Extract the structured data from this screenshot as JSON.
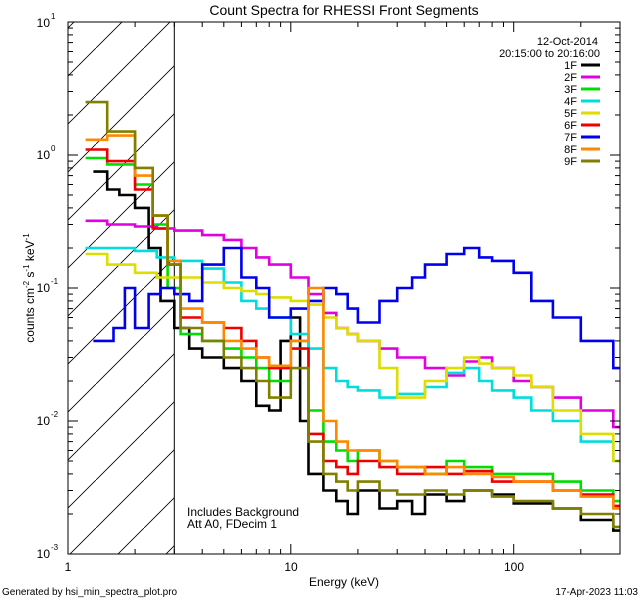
{
  "chart_data": {
    "type": "line",
    "title": "Count Spectra for RHESSI Front Segments",
    "xlabel": "Energy (keV)",
    "ylabel": "counts cm",
    "ylabel_sup1": "-2",
    "ylabel_mid": " s",
    "ylabel_sup2": "-1",
    "ylabel_end": " keV",
    "ylabel_sup3": "-1",
    "xscale": "log",
    "yscale": "log",
    "xlim": [
      1,
      300
    ],
    "ylim": [
      0.001,
      10
    ],
    "x_tick_labels": [
      "1",
      "10",
      "100"
    ],
    "y_tick_labels": [
      {
        "base": "10",
        "exp": "-3"
      },
      {
        "base": "10",
        "exp": "-2"
      },
      {
        "base": "10",
        "exp": "-1"
      },
      {
        "base": "10",
        "exp": "0"
      },
      {
        "base": "10",
        "exp": "1"
      }
    ],
    "date": "12-Oct-2014",
    "time_range": "20:15:00 to 20:16:00",
    "attenuator_cutoff_kev": 3,
    "annotation_line1": "Includes Background",
    "annotation_line2": "Att A0, FDecim 1",
    "footer_left": "Generated by hsi_min_spectra_plot.pro",
    "footer_right": "17-Apr-2023 11:03",
    "legend_position": "top-right",
    "series": [
      {
        "name": "1F",
        "color": "#000000",
        "points": [
          [
            1.3,
            0.75
          ],
          [
            1.5,
            0.55
          ],
          [
            1.7,
            0.5
          ],
          [
            2.0,
            0.4
          ],
          [
            2.3,
            0.2
          ],
          [
            2.6,
            0.08
          ],
          [
            3.0,
            0.05
          ],
          [
            3.5,
            0.035
          ],
          [
            4,
            0.03
          ],
          [
            5,
            0.025
          ],
          [
            6,
            0.02
          ],
          [
            7,
            0.013
          ],
          [
            8,
            0.012
          ],
          [
            9,
            0.04
          ],
          [
            10,
            0.06
          ],
          [
            11,
            0.01
          ],
          [
            12,
            0.004
          ],
          [
            14,
            0.003
          ],
          [
            16,
            0.0025
          ],
          [
            18,
            0.002
          ],
          [
            20,
            0.003
          ],
          [
            25,
            0.0022
          ],
          [
            30,
            0.0025
          ],
          [
            35,
            0.002
          ],
          [
            40,
            0.0028
          ],
          [
            50,
            0.0025
          ],
          [
            60,
            0.003
          ],
          [
            80,
            0.0028
          ],
          [
            100,
            0.0024
          ],
          [
            150,
            0.0022
          ],
          [
            200,
            0.0018
          ],
          [
            280,
            0.0015
          ]
        ]
      },
      {
        "name": "2F",
        "color": "#e000e0",
        "points": [
          [
            1.2,
            0.32
          ],
          [
            1.5,
            0.3
          ],
          [
            2.0,
            0.29
          ],
          [
            2.5,
            0.28
          ],
          [
            3.0,
            0.27
          ],
          [
            4,
            0.25
          ],
          [
            5,
            0.23
          ],
          [
            6,
            0.2
          ],
          [
            7,
            0.17
          ],
          [
            8,
            0.15
          ],
          [
            10,
            0.12
          ],
          [
            12,
            0.09
          ],
          [
            14,
            0.065
          ],
          [
            16,
            0.05
          ],
          [
            18,
            0.045
          ],
          [
            20,
            0.04
          ],
          [
            25,
            0.035
          ],
          [
            30,
            0.03
          ],
          [
            40,
            0.025
          ],
          [
            50,
            0.022
          ],
          [
            60,
            0.028
          ],
          [
            70,
            0.03
          ],
          [
            80,
            0.025
          ],
          [
            100,
            0.02
          ],
          [
            120,
            0.018
          ],
          [
            150,
            0.015
          ],
          [
            200,
            0.012
          ],
          [
            280,
            0.009
          ]
        ]
      },
      {
        "name": "3F",
        "color": "#00dd00",
        "points": [
          [
            1.2,
            0.95
          ],
          [
            1.5,
            0.85
          ],
          [
            2.0,
            0.6
          ],
          [
            2.4,
            0.3
          ],
          [
            2.8,
            0.1
          ],
          [
            3.2,
            0.045
          ],
          [
            4,
            0.04
          ],
          [
            5,
            0.035
          ],
          [
            6,
            0.03
          ],
          [
            7,
            0.025
          ],
          [
            8,
            0.02
          ],
          [
            10,
            0.04
          ],
          [
            12,
            0.012
          ],
          [
            14,
            0.007
          ],
          [
            16,
            0.006
          ],
          [
            18,
            0.005
          ],
          [
            20,
            0.006
          ],
          [
            25,
            0.005
          ],
          [
            30,
            0.0045
          ],
          [
            40,
            0.004
          ],
          [
            50,
            0.005
          ],
          [
            60,
            0.0045
          ],
          [
            80,
            0.004
          ],
          [
            100,
            0.004
          ],
          [
            150,
            0.0035
          ],
          [
            200,
            0.003
          ],
          [
            280,
            0.0025
          ]
        ]
      },
      {
        "name": "4F",
        "color": "#00dddd",
        "points": [
          [
            1.2,
            0.2
          ],
          [
            1.5,
            0.2
          ],
          [
            2.0,
            0.19
          ],
          [
            2.5,
            0.17
          ],
          [
            3.0,
            0.16
          ],
          [
            4,
            0.14
          ],
          [
            5,
            0.11
          ],
          [
            6,
            0.08
          ],
          [
            7,
            0.07
          ],
          [
            8,
            0.06
          ],
          [
            10,
            0.045
          ],
          [
            12,
            0.035
          ],
          [
            14,
            0.025
          ],
          [
            16,
            0.02
          ],
          [
            18,
            0.018
          ],
          [
            20,
            0.017
          ],
          [
            25,
            0.015
          ],
          [
            30,
            0.016
          ],
          [
            40,
            0.018
          ],
          [
            50,
            0.023
          ],
          [
            60,
            0.025
          ],
          [
            70,
            0.02
          ],
          [
            80,
            0.017
          ],
          [
            100,
            0.015
          ],
          [
            120,
            0.012
          ],
          [
            150,
            0.01
          ],
          [
            200,
            0.007
          ],
          [
            280,
            0.005
          ]
        ]
      },
      {
        "name": "5F",
        "color": "#dddd00",
        "points": [
          [
            1.2,
            0.18
          ],
          [
            1.5,
            0.15
          ],
          [
            2.0,
            0.13
          ],
          [
            2.5,
            0.12
          ],
          [
            3.0,
            0.12
          ],
          [
            4,
            0.11
          ],
          [
            5,
            0.1
          ],
          [
            6,
            0.095
          ],
          [
            7,
            0.09
          ],
          [
            8,
            0.085
          ],
          [
            10,
            0.08
          ],
          [
            12,
            0.075
          ],
          [
            14,
            0.06
          ],
          [
            16,
            0.05
          ],
          [
            18,
            0.045
          ],
          [
            20,
            0.04
          ],
          [
            25,
            0.025
          ],
          [
            30,
            0.015
          ],
          [
            40,
            0.02
          ],
          [
            50,
            0.025
          ],
          [
            60,
            0.03
          ],
          [
            70,
            0.027
          ],
          [
            80,
            0.025
          ],
          [
            100,
            0.022
          ],
          [
            120,
            0.018
          ],
          [
            150,
            0.012
          ],
          [
            200,
            0.008
          ],
          [
            280,
            0.005
          ]
        ]
      },
      {
        "name": "6F",
        "color": "#ee0000",
        "points": [
          [
            1.2,
            1.1
          ],
          [
            1.5,
            0.9
          ],
          [
            2.0,
            0.55
          ],
          [
            2.4,
            0.28
          ],
          [
            2.8,
            0.15
          ],
          [
            3.2,
            0.06
          ],
          [
            4,
            0.055
          ],
          [
            5,
            0.05
          ],
          [
            6,
            0.04
          ],
          [
            7,
            0.03
          ],
          [
            8,
            0.025
          ],
          [
            10,
            0.035
          ],
          [
            12,
            0.008
          ],
          [
            14,
            0.005
          ],
          [
            16,
            0.0045
          ],
          [
            18,
            0.004
          ],
          [
            20,
            0.005
          ],
          [
            25,
            0.0045
          ],
          [
            30,
            0.004
          ],
          [
            40,
            0.0045
          ],
          [
            50,
            0.004
          ],
          [
            60,
            0.0042
          ],
          [
            80,
            0.0035
          ],
          [
            100,
            0.0035
          ],
          [
            150,
            0.003
          ],
          [
            200,
            0.0028
          ],
          [
            280,
            0.0023
          ]
        ]
      },
      {
        "name": "7F",
        "color": "#0000ee",
        "points": [
          [
            1.3,
            0.04
          ],
          [
            1.6,
            0.05
          ],
          [
            1.8,
            0.1
          ],
          [
            2.0,
            0.05
          ],
          [
            2.3,
            0.09
          ],
          [
            2.6,
            0.1
          ],
          [
            3.0,
            0.09
          ],
          [
            3.5,
            0.08
          ],
          [
            4,
            0.15
          ],
          [
            5,
            0.2
          ],
          [
            6,
            0.12
          ],
          [
            7,
            0.1
          ],
          [
            8,
            0.06
          ],
          [
            9,
            0.06
          ],
          [
            10,
            0.07
          ],
          [
            12,
            0.08
          ],
          [
            14,
            0.1
          ],
          [
            16,
            0.09
          ],
          [
            18,
            0.07
          ],
          [
            20,
            0.055
          ],
          [
            25,
            0.08
          ],
          [
            30,
            0.1
          ],
          [
            35,
            0.12
          ],
          [
            40,
            0.15
          ],
          [
            50,
            0.18
          ],
          [
            60,
            0.2
          ],
          [
            70,
            0.17
          ],
          [
            80,
            0.16
          ],
          [
            100,
            0.13
          ],
          [
            120,
            0.08
          ],
          [
            150,
            0.06
          ],
          [
            200,
            0.04
          ],
          [
            280,
            0.025
          ]
        ]
      },
      {
        "name": "8F",
        "color": "#ff8800",
        "points": [
          [
            1.2,
            1.3
          ],
          [
            1.5,
            1.4
          ],
          [
            2.0,
            0.7
          ],
          [
            2.4,
            0.35
          ],
          [
            2.8,
            0.16
          ],
          [
            3.2,
            0.07
          ],
          [
            4,
            0.055
          ],
          [
            5,
            0.04
          ],
          [
            6,
            0.035
          ],
          [
            7,
            0.03
          ],
          [
            8,
            0.026
          ],
          [
            10,
            0.04
          ],
          [
            12,
            0.1
          ],
          [
            14,
            0.01
          ],
          [
            16,
            0.007
          ],
          [
            18,
            0.006
          ],
          [
            20,
            0.006
          ],
          [
            25,
            0.005
          ],
          [
            30,
            0.0045
          ],
          [
            40,
            0.004
          ],
          [
            50,
            0.0045
          ],
          [
            60,
            0.004
          ],
          [
            80,
            0.0038
          ],
          [
            100,
            0.0035
          ],
          [
            150,
            0.003
          ],
          [
            200,
            0.0027
          ],
          [
            280,
            0.0022
          ]
        ]
      },
      {
        "name": "9F",
        "color": "#808000",
        "points": [
          [
            1.2,
            2.5
          ],
          [
            1.5,
            1.5
          ],
          [
            2.0,
            0.8
          ],
          [
            2.4,
            0.35
          ],
          [
            2.8,
            0.15
          ],
          [
            3.2,
            0.05
          ],
          [
            4,
            0.04
          ],
          [
            5,
            0.03
          ],
          [
            6,
            0.025
          ],
          [
            7,
            0.02
          ],
          [
            8,
            0.015
          ],
          [
            10,
            0.025
          ],
          [
            12,
            0.007
          ],
          [
            14,
            0.004
          ],
          [
            16,
            0.0035
          ],
          [
            18,
            0.003
          ],
          [
            20,
            0.0035
          ],
          [
            25,
            0.003
          ],
          [
            30,
            0.0028
          ],
          [
            40,
            0.003
          ],
          [
            50,
            0.0028
          ],
          [
            60,
            0.003
          ],
          [
            80,
            0.0027
          ],
          [
            100,
            0.0025
          ],
          [
            150,
            0.0022
          ],
          [
            200,
            0.002
          ],
          [
            280,
            0.0016
          ]
        ]
      }
    ]
  }
}
